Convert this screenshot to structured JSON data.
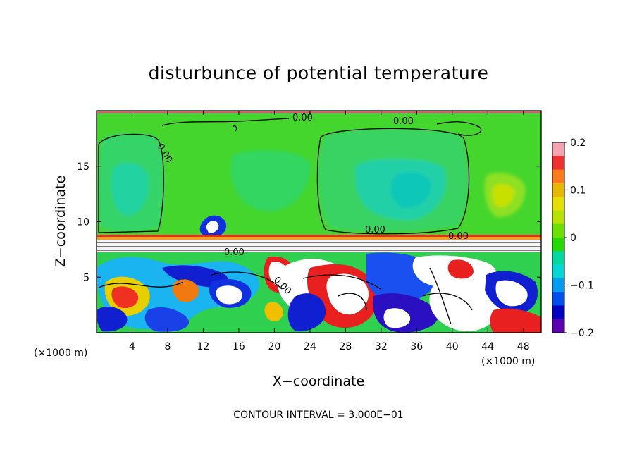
{
  "chart_data": {
    "type": "heatmap",
    "title": "disturbunce of potential temperature",
    "xlabel": "X−coordinate",
    "ylabel": "Z−coordinate",
    "x_unit_left": "(×1000 m)",
    "x_unit_right": "(×1000 m)",
    "x_ticks": [
      "4",
      "8",
      "12",
      "16",
      "20",
      "24",
      "28",
      "32",
      "36",
      "40",
      "44",
      "48"
    ],
    "y_ticks": [
      "5",
      "10",
      "15"
    ],
    "xlim": [
      0,
      50
    ],
    "ylim": [
      0,
      20
    ],
    "contour_labels": [
      "0.00",
      "0.00",
      "0.00",
      "0.00",
      "0.00",
      "0.00",
      "0.00"
    ],
    "colorbar": {
      "ticks": [
        "0.2",
        "0.1",
        "0",
        "−0.1",
        "−0.2"
      ],
      "range": [
        -0.2,
        0.2
      ],
      "colors": [
        "#f4a3b0",
        "#f03030",
        "#ff7a1a",
        "#e8b800",
        "#e6e000",
        "#b8e000",
        "#6ce000",
        "#25d800",
        "#00d8a0",
        "#00d8d8",
        "#009cf0",
        "#0050f0",
        "#0000c0",
        "#5a00b0"
      ]
    },
    "footer": "CONTOUR INTERVAL = 3.000E−01",
    "colors": {
      "upper_field": "#4cd932",
      "core_field": "#2ecf8a",
      "positive": "#e82020",
      "negative": "#1020d0",
      "contour": "#000000"
    }
  }
}
